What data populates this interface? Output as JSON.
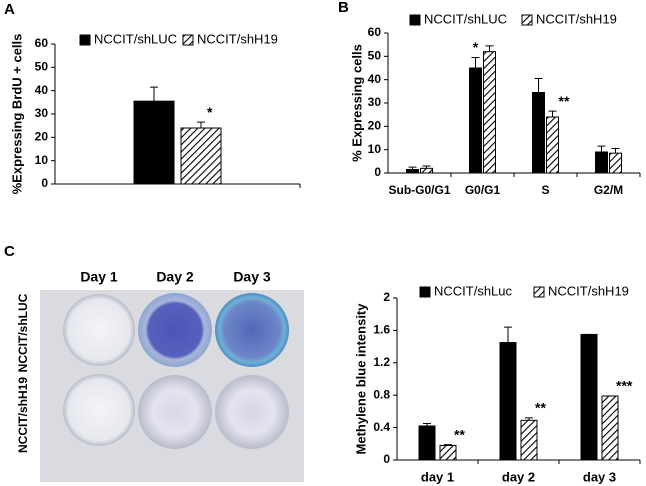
{
  "panels": [
    "A",
    "B",
    "C"
  ],
  "photo": {
    "columns": [
      "Day 1",
      "Day 2",
      "Day 3"
    ],
    "rows": [
      "NCCIT/shLUC",
      "NCCIT/shH19"
    ]
  },
  "chart_data": [
    {
      "type": "bar",
      "y_label": "%Expressing BrdU + cells",
      "categories": [
        null
      ],
      "series": [
        {
          "name": "NCCIT/shLUC",
          "color": "#000000",
          "hatch": false,
          "values": [
            35.5
          ],
          "errors": [
            6
          ]
        },
        {
          "name": "NCCIT/shH19",
          "color": "#000000",
          "hatch": true,
          "values": [
            24
          ],
          "errors": [
            2.5
          ]
        }
      ],
      "annotations": [
        {
          "text": "*",
          "series": 1,
          "index": 0
        }
      ],
      "ylim": [
        0,
        60
      ],
      "yticks": [
        0,
        10,
        20,
        30,
        40,
        50,
        60
      ]
    },
    {
      "type": "bar",
      "y_label": "%  Expressing cells",
      "categories": [
        "Sub-G0/G1",
        "G0/G1",
        "S",
        "G2/M"
      ],
      "series": [
        {
          "name": "NCCIT/shLUC",
          "color": "#000000",
          "hatch": false,
          "values": [
            1.5,
            45,
            34.5,
            9
          ],
          "errors": [
            1,
            4.5,
            6,
            2.5
          ]
        },
        {
          "name": "NCCIT/shH19",
          "color": "#000000",
          "hatch": true,
          "values": [
            2,
            52,
            24,
            8.5
          ],
          "errors": [
            1,
            2.5,
            2.5,
            2
          ]
        }
      ],
      "annotations": [
        {
          "text": "*",
          "series": 0,
          "index": 1
        },
        {
          "text": "**",
          "series": 1,
          "index": 2
        }
      ],
      "ylim": [
        0,
        60
      ],
      "yticks": [
        0,
        10,
        20,
        30,
        40,
        50,
        60
      ]
    },
    {
      "type": "bar",
      "y_label": "Methylene blue intensity",
      "categories": [
        "day 1",
        "day 2",
        "day 3"
      ],
      "series": [
        {
          "name": "NCCIT/shLuc",
          "color": "#000000",
          "hatch": false,
          "values": [
            0.42,
            1.45,
            1.55
          ],
          "errors": [
            0.03,
            0.19,
            0
          ]
        },
        {
          "name": "NCCIT/shH19",
          "color": "#000000",
          "hatch": true,
          "values": [
            0.18,
            0.49,
            0.79
          ],
          "errors": [
            0.01,
            0.03,
            0
          ]
        }
      ],
      "annotations": [
        {
          "text": "**",
          "series": 1,
          "index": 0
        },
        {
          "text": "**",
          "series": 1,
          "index": 1
        },
        {
          "text": "***",
          "series": 1,
          "index": 2
        }
      ],
      "ylim": [
        0,
        2
      ],
      "yticks": [
        0,
        0.4,
        0.8,
        1.2,
        1.6,
        2
      ]
    }
  ]
}
